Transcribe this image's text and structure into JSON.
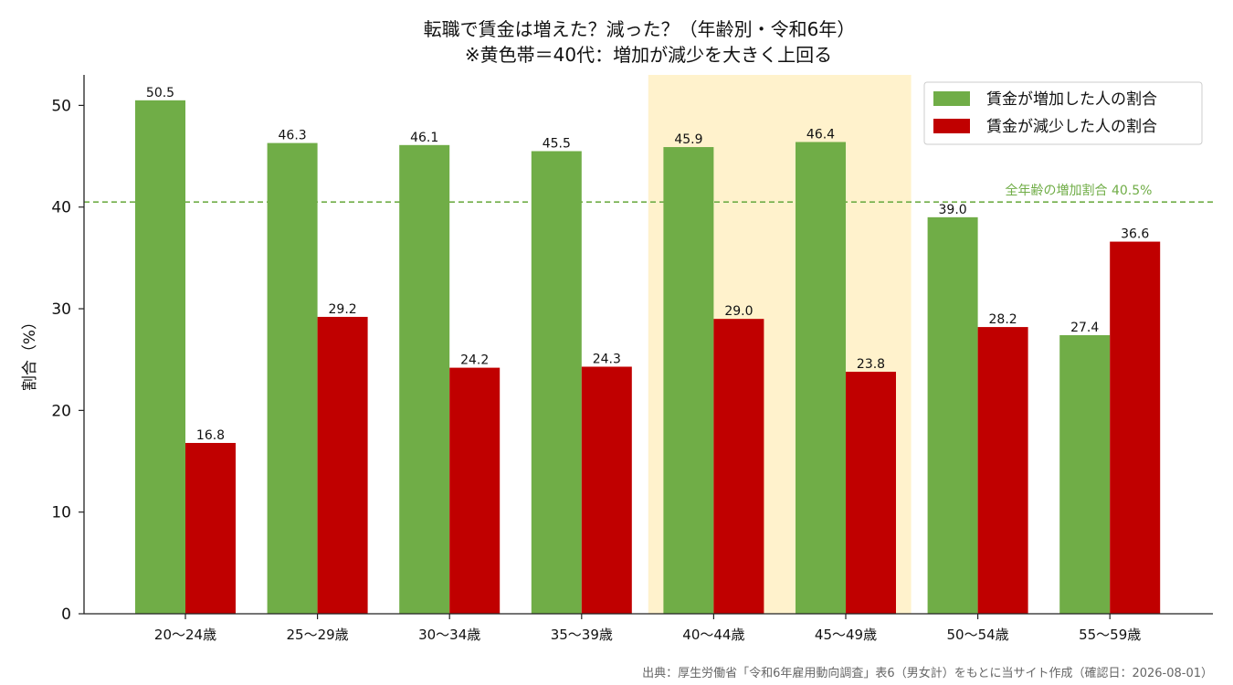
{
  "chart_data": {
    "type": "bar",
    "title": "転職で賃金は増えた？減った？（年齢別・令和6年）",
    "subtitle": "※黄色帯＝40代：増加が減少を大きく上回る",
    "ylabel": "割合（%）",
    "xlabel": "",
    "ylim": [
      0,
      53
    ],
    "yticks": [
      "0",
      "10",
      "20",
      "30",
      "40",
      "50"
    ],
    "categories": [
      "20〜24歳",
      "25〜29歳",
      "30〜34歳",
      "35〜39歳",
      "40〜44歳",
      "45〜49歳",
      "50〜54歳",
      "55〜59歳"
    ],
    "series": [
      {
        "name": "賃金が増加した人の割合",
        "color": "#70ad47",
        "values": [
          50.5,
          46.3,
          46.1,
          45.5,
          45.9,
          46.4,
          39.0,
          27.4
        ],
        "labels": [
          "50.5",
          "46.3",
          "46.1",
          "45.5",
          "45.9",
          "46.4",
          "39.0",
          "27.4"
        ]
      },
      {
        "name": "賃金が減少した人の割合",
        "color": "#c00000",
        "values": [
          16.8,
          29.2,
          24.2,
          24.3,
          29.0,
          23.8,
          28.2,
          36.6
        ],
        "labels": [
          "16.8",
          "29.2",
          "24.2",
          "24.3",
          "29.0",
          "23.8",
          "28.2",
          "36.6"
        ]
      }
    ],
    "reference_line": {
      "value": 40.5,
      "label": "全年齢の増加割合 40.5%",
      "color": "#70ad47"
    },
    "highlight": {
      "categories": [
        "40〜44歳",
        "45〜49歳"
      ],
      "color": "#fff2cc"
    },
    "legend_position": "top-right",
    "grid": false,
    "source": "出典：厚生労働省「令和6年雇用動向調査」表6（男女計）をもとに当サイト作成（確認日：2026-08-01）"
  }
}
